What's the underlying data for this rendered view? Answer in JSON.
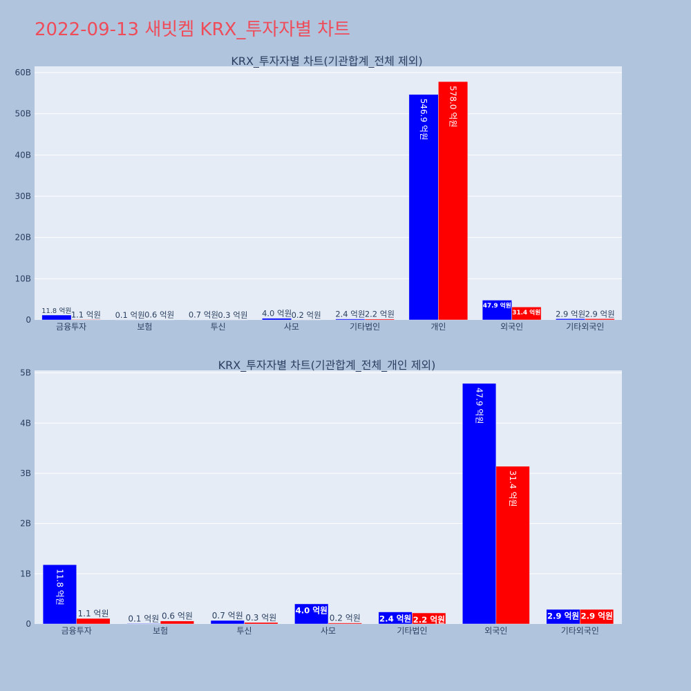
{
  "page": {
    "title": "2022-09-13 새빗켐 KRX_투자자별 차트"
  },
  "chart_data": [
    {
      "type": "bar",
      "title": "KRX_투자자별 차트(기관합계_전체 제외)",
      "categories": [
        "금융투자",
        "보험",
        "투신",
        "사모",
        "기타법인",
        "개인",
        "외국인",
        "기타외국인"
      ],
      "series": [
        {
          "color": "#0000ff",
          "values": [
            1180000000,
            10000000,
            70000000,
            400000000,
            240000000,
            54690000000,
            4790000000,
            290000000
          ],
          "labels": [
            "11.8 억원",
            "0.1 억원",
            "0.7 억원",
            "4.0 억원",
            "2.4 억원",
            "546.9 억원",
            "47.9 억원",
            "2.9 억원"
          ]
        },
        {
          "color": "#ff0000",
          "values": [
            110000000,
            60000000,
            30000000,
            20000000,
            220000000,
            57800000000,
            3140000000,
            290000000
          ],
          "labels": [
            "1.1 억원",
            "0.6 억원",
            "0.3 억원",
            "0.2 억원",
            "2.2 억원",
            "578.0 억원",
            "31.4 억원",
            "2.9 억원"
          ]
        }
      ],
      "ylim": [
        0,
        61500000000
      ],
      "yticks": [
        0,
        10000000000,
        20000000000,
        30000000000,
        40000000000,
        50000000000,
        60000000000
      ],
      "ytick_labels": [
        "0",
        "10B",
        "20B",
        "30B",
        "40B",
        "50B",
        "60B"
      ],
      "grid": true,
      "legend": "none"
    },
    {
      "type": "bar",
      "title": "KRX_투자자별 차트(기관합계_전체_개인 제외)",
      "categories": [
        "금융투자",
        "보험",
        "투신",
        "사모",
        "기타법인",
        "외국인",
        "기타외국인"
      ],
      "series": [
        {
          "color": "#0000ff",
          "values": [
            1180000000,
            10000000,
            70000000,
            400000000,
            240000000,
            4790000000,
            290000000
          ],
          "labels": [
            "11.8 억원",
            "0.1 억원",
            "0.7 억원",
            "4.0 억원",
            "2.4 억원",
            "47.9 억원",
            "2.9 억원"
          ]
        },
        {
          "color": "#ff0000",
          "values": [
            110000000,
            60000000,
            30000000,
            20000000,
            220000000,
            3140000000,
            290000000
          ],
          "labels": [
            "1.1 억원",
            "0.6 억원",
            "0.3 억원",
            "0.2 억원",
            "2.2 억원",
            "31.4 억원",
            "2.9 억원"
          ]
        }
      ],
      "ylim": [
        0,
        5050000000
      ],
      "yticks": [
        0,
        1000000000,
        2000000000,
        3000000000,
        4000000000,
        5000000000
      ],
      "ytick_labels": [
        "0",
        "1B",
        "2B",
        "3B",
        "4B",
        "5B"
      ],
      "grid": true,
      "legend": "none"
    }
  ]
}
